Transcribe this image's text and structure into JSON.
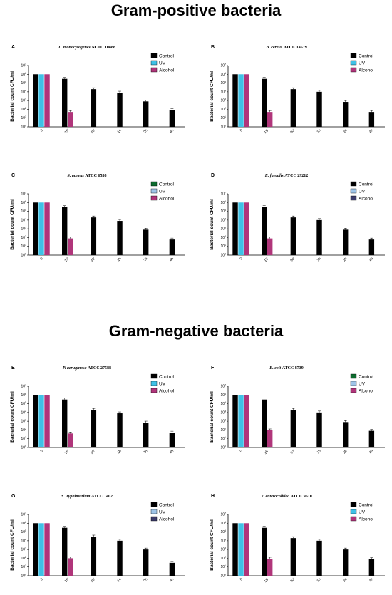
{
  "headings": {
    "positive": "Gram-positive bacteria",
    "negative": "Gram-negative bacteria"
  },
  "colors": {
    "control": "#000000",
    "uv": "#3fc1e6",
    "alcohol": "#b0357a",
    "alcohol_alt": "#3d3d6b",
    "uv_alt": "#9fc5e8",
    "control_alt": "#0d6b2e"
  },
  "chart_data": [
    {
      "type": "bar",
      "panel": "A",
      "title_italic": "L. monocytogenes",
      "title_rest": "NCTC 10888",
      "ylabel": "Bacterial count CFU/ml",
      "ylim_log10": [
        0,
        7
      ],
      "categories": [
        "0",
        "15'",
        "30'",
        "1h",
        "2h",
        "4h"
      ],
      "series": [
        {
          "name": "Control",
          "values": [
            1000000,
            300000,
            20000,
            8000,
            800,
            80
          ]
        },
        {
          "name": "UV",
          "values": [
            1000000,
            null,
            null,
            null,
            null,
            null
          ]
        },
        {
          "name": "Alcohol",
          "values": [
            1000000,
            50,
            null,
            null,
            null,
            null
          ]
        }
      ],
      "legend_colors": [
        "#000000",
        "#3fc1e6",
        "#b0357a"
      ]
    },
    {
      "type": "bar",
      "panel": "B",
      "title_italic": "B. cereus",
      "title_rest": "ATCC 14579",
      "ylabel": "Bacterial count CFU/ml",
      "ylim_log10": [
        0,
        7
      ],
      "categories": [
        "0",
        "15'",
        "30'",
        "1h",
        "2h",
        "4h"
      ],
      "series": [
        {
          "name": "Control",
          "values": [
            1000000,
            300000,
            20000,
            10000,
            700,
            50
          ]
        },
        {
          "name": "UV",
          "values": [
            1000000,
            null,
            null,
            null,
            null,
            null
          ]
        },
        {
          "name": "Alcohol",
          "values": [
            1000000,
            50,
            null,
            null,
            null,
            null
          ]
        }
      ],
      "legend_colors": [
        "#000000",
        "#3fc1e6",
        "#b0357a"
      ]
    },
    {
      "type": "bar",
      "panel": "C",
      "title_italic": "S. aureus",
      "title_rest": "ATCC 6538",
      "ylabel": "Bacterial count CFU/ml",
      "ylim_log10": [
        0,
        7
      ],
      "categories": [
        "0",
        "15'",
        "30'",
        "1h",
        "2h",
        "4h"
      ],
      "series": [
        {
          "name": "Control",
          "values": [
            1000000,
            300000,
            20000,
            8000,
            800,
            60
          ]
        },
        {
          "name": "UV",
          "values": [
            1000000,
            null,
            null,
            null,
            null,
            null
          ]
        },
        {
          "name": "Alcohol",
          "values": [
            1000000,
            80,
            null,
            null,
            null,
            null
          ]
        }
      ],
      "legend_colors": [
        "#0d6b2e",
        "#9fc5e8",
        "#b0357a"
      ]
    },
    {
      "type": "bar",
      "panel": "D",
      "title_italic": "E. faecalis",
      "title_rest": "ATCC 29212",
      "ylabel": "Bacterial count CFU/ml",
      "ylim_log10": [
        0,
        7
      ],
      "categories": [
        "0",
        "15'",
        "30'",
        "1h",
        "2h",
        "4h"
      ],
      "series": [
        {
          "name": "Control",
          "values": [
            1000000,
            300000,
            20000,
            10000,
            800,
            60
          ]
        },
        {
          "name": "UV",
          "values": [
            1000000,
            null,
            null,
            null,
            null,
            null
          ]
        },
        {
          "name": "Alcohol",
          "values": [
            1000000,
            80,
            null,
            null,
            null,
            null
          ]
        }
      ],
      "legend_colors": [
        "#000000",
        "#9fc5e8",
        "#3d3d6b"
      ]
    },
    {
      "type": "bar",
      "panel": "E",
      "title_italic": "P. aeruginosa",
      "title_rest": "ATCC 27588",
      "ylabel": "Bacterial count CFU/ml",
      "ylim_log10": [
        0,
        7
      ],
      "categories": [
        "0",
        "15'",
        "30'",
        "1h",
        "2h",
        "4h"
      ],
      "series": [
        {
          "name": "Control",
          "values": [
            1000000,
            300000,
            20000,
            8000,
            700,
            50
          ]
        },
        {
          "name": "UV",
          "values": [
            1000000,
            null,
            null,
            null,
            null,
            null
          ]
        },
        {
          "name": "Alcohol",
          "values": [
            1000000,
            40,
            null,
            null,
            null,
            null
          ]
        }
      ],
      "legend_colors": [
        "#000000",
        "#3fc1e6",
        "#b0357a"
      ]
    },
    {
      "type": "bar",
      "panel": "F",
      "title_italic": "E. coli",
      "title_rest": "ATCC 8739",
      "ylabel": "Bacterial count CFU/ml",
      "ylim_log10": [
        0,
        7
      ],
      "categories": [
        "0",
        "15'",
        "30'",
        "1h",
        "2h",
        "4h"
      ],
      "series": [
        {
          "name": "Control",
          "values": [
            1000000,
            300000,
            20000,
            10000,
            800,
            80
          ]
        },
        {
          "name": "UV",
          "values": [
            1000000,
            null,
            null,
            null,
            null,
            null
          ]
        },
        {
          "name": "Alcohol",
          "values": [
            1000000,
            90,
            null,
            null,
            null,
            null
          ]
        }
      ],
      "legend_colors": [
        "#0d6b2e",
        "#9fc5e8",
        "#b0357a"
      ]
    },
    {
      "type": "bar",
      "panel": "G",
      "title_italic": "S. Typhimurium",
      "title_rest": "ATCC 1402",
      "ylabel": "Bacterial count CFU/ml",
      "ylim_log10": [
        0,
        7
      ],
      "categories": [
        "0",
        "15'",
        "30'",
        "1h",
        "2h",
        "4h"
      ],
      "series": [
        {
          "name": "Control",
          "values": [
            1000000,
            300000,
            30000,
            10000,
            1000,
            30
          ]
        },
        {
          "name": "UV",
          "values": [
            1000000,
            null,
            null,
            null,
            null,
            null
          ]
        },
        {
          "name": "Alcohol",
          "values": [
            1000000,
            100,
            null,
            null,
            null,
            null
          ]
        }
      ],
      "legend_colors": [
        "#000000",
        "#9fc5e8",
        "#3d3d6b"
      ]
    },
    {
      "type": "bar",
      "panel": "H",
      "title_italic": "Y. enterocolitica",
      "title_rest": "ATCC 9610",
      "ylabel": "Bacterial count CFU/ml",
      "ylim_log10": [
        0,
        7
      ],
      "categories": [
        "0",
        "15'",
        "30'",
        "1h",
        "2h",
        "4h"
      ],
      "series": [
        {
          "name": "Control",
          "values": [
            1000000,
            300000,
            20000,
            10000,
            1000,
            80
          ]
        },
        {
          "name": "UV",
          "values": [
            1000000,
            null,
            null,
            null,
            null,
            null
          ]
        },
        {
          "name": "Alcohol",
          "values": [
            1000000,
            90,
            null,
            null,
            null,
            null
          ]
        }
      ],
      "legend_colors": [
        "#000000",
        "#3fc1e6",
        "#b0357a"
      ]
    }
  ]
}
